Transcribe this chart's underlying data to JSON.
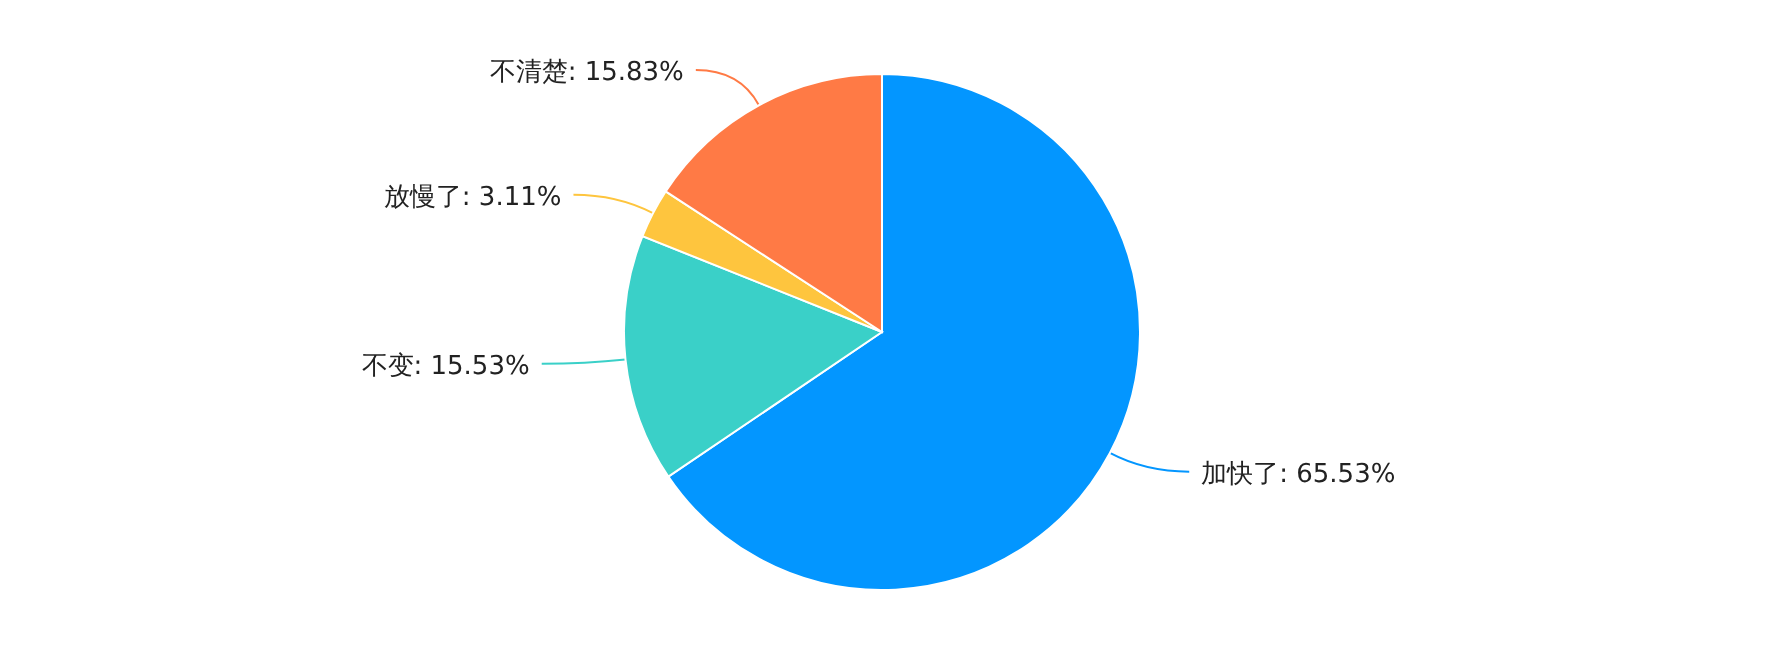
{
  "chart_data": {
    "type": "pie",
    "categories": [
      "加快了",
      "不变",
      "放慢了",
      "不清楚"
    ],
    "values": [
      65.53,
      15.53,
      3.11,
      15.83
    ],
    "value_labels": [
      "65.53%",
      "15.53%",
      "3.11%",
      "15.83%"
    ],
    "colors": [
      "#0396ff",
      "#3ad0c8",
      "#fec53e",
      "#ff7a45"
    ]
  }
}
